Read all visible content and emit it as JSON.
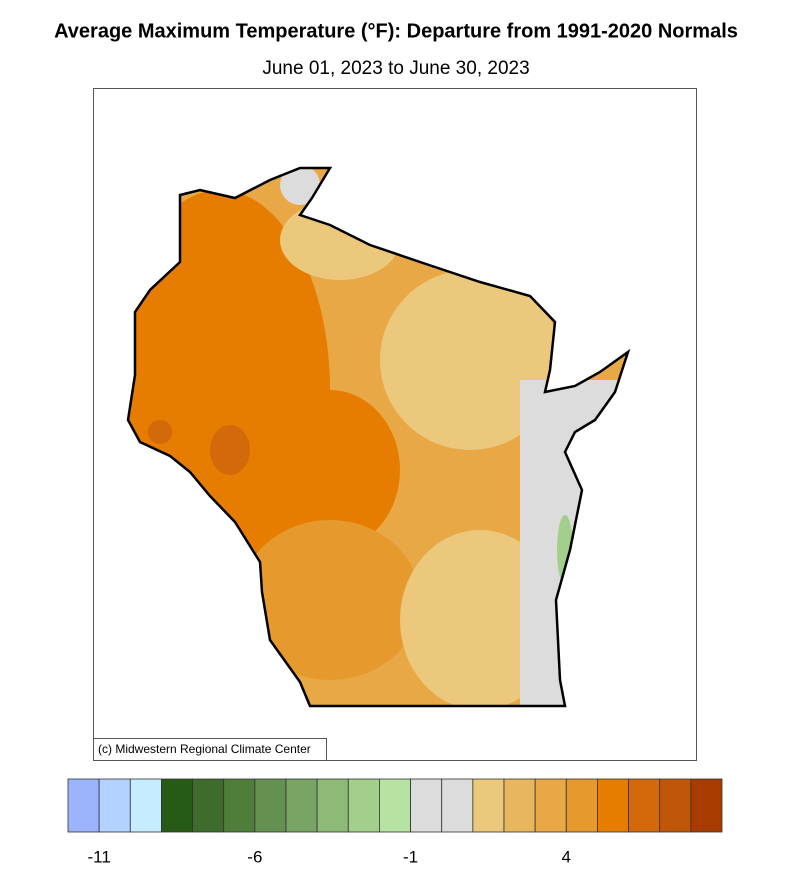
{
  "title": "Average Maximum Temperature (°F): Departure from 1991-2020 Normals",
  "subtitle": "June 01, 2023 to June 30, 2023",
  "credit": "(c) Midwestern Regional Climate Center",
  "colorbar": {
    "lim": [
      -12,
      9
    ],
    "ticks": [
      -11,
      -6,
      -1,
      4
    ],
    "colors": [
      "#9bb4fc",
      "#b4d2ff",
      "#c8ecff",
      "#275a14",
      "#3d6c2b",
      "#4f7e3b",
      "#64914f",
      "#79a564",
      "#8dba76",
      "#a2cf8b",
      "#b6e3a2",
      "#dcdcdc",
      "#dcdcdc",
      "#ecc87c",
      "#e8b65e",
      "#e8a845",
      "#e69a2e",
      "#e67d00",
      "#d3690a",
      "#c0560a",
      "#a83c00"
    ]
  }
}
